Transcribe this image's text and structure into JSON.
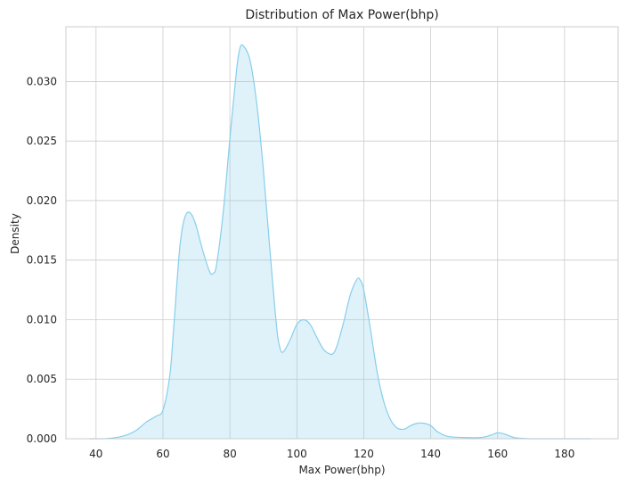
{
  "chart_data": {
    "type": "area",
    "title": "Distribution of Max Power(bhp)",
    "xlabel": "Max Power(bhp)",
    "ylabel": "Density",
    "xlim": [
      31,
      196
    ],
    "ylim": [
      0,
      0.0346
    ],
    "xticks": [
      40,
      60,
      80,
      100,
      120,
      140,
      160,
      180
    ],
    "xtick_labels": [
      "40",
      "60",
      "80",
      "100",
      "120",
      "140",
      "160",
      "180"
    ],
    "yticks": [
      0.0,
      0.005,
      0.01,
      0.015,
      0.02,
      0.025,
      0.03
    ],
    "ytick_labels": [
      "0.000",
      "0.005",
      "0.010",
      "0.015",
      "0.020",
      "0.025",
      "0.030"
    ],
    "grid": true,
    "series": [
      {
        "x": [
          38,
          42,
          46,
          49,
          52,
          55,
          58,
          60,
          62,
          63,
          64,
          65,
          66,
          67,
          68,
          69,
          70,
          72,
          74,
          75,
          76,
          78,
          80,
          82,
          83,
          84,
          86,
          88,
          90,
          92,
          94,
          95,
          96,
          98,
          100,
          102,
          104,
          106,
          108,
          110,
          111,
          112,
          114,
          116,
          118,
          119,
          120,
          122,
          124,
          126,
          128,
          130,
          132,
          134,
          136,
          138,
          140,
          142,
          145,
          150,
          155,
          158,
          160,
          162,
          165,
          170,
          175,
          180,
          185,
          188
        ],
        "y": [
          0.0,
          0.0,
          0.0001,
          0.0003,
          0.0007,
          0.0014,
          0.0019,
          0.0024,
          0.0052,
          0.0085,
          0.0124,
          0.016,
          0.018,
          0.0189,
          0.019,
          0.0186,
          0.0178,
          0.0157,
          0.014,
          0.0139,
          0.0146,
          0.019,
          0.0252,
          0.031,
          0.0328,
          0.033,
          0.0318,
          0.0282,
          0.0226,
          0.0157,
          0.0093,
          0.0076,
          0.0073,
          0.0083,
          0.0096,
          0.01,
          0.0096,
          0.0085,
          0.0075,
          0.0071,
          0.0072,
          0.0078,
          0.0098,
          0.0121,
          0.0134,
          0.0133,
          0.0125,
          0.0092,
          0.0056,
          0.0031,
          0.0016,
          0.0009,
          0.0008,
          0.0011,
          0.0013,
          0.0013,
          0.0011,
          0.0006,
          0.0002,
          0.0001,
          0.0001,
          0.0003,
          0.0005,
          0.0004,
          0.0001,
          0.0,
          0.0,
          0.0,
          0.0,
          0.0
        ],
        "line_color": "#87ceeb",
        "fill_color": "#87ceeb",
        "fill_opacity": 0.27
      }
    ],
    "colors": {
      "grid": "#cccccc",
      "axes_edge": "#cccccc",
      "text": "#262626",
      "background": "#ffffff"
    }
  }
}
